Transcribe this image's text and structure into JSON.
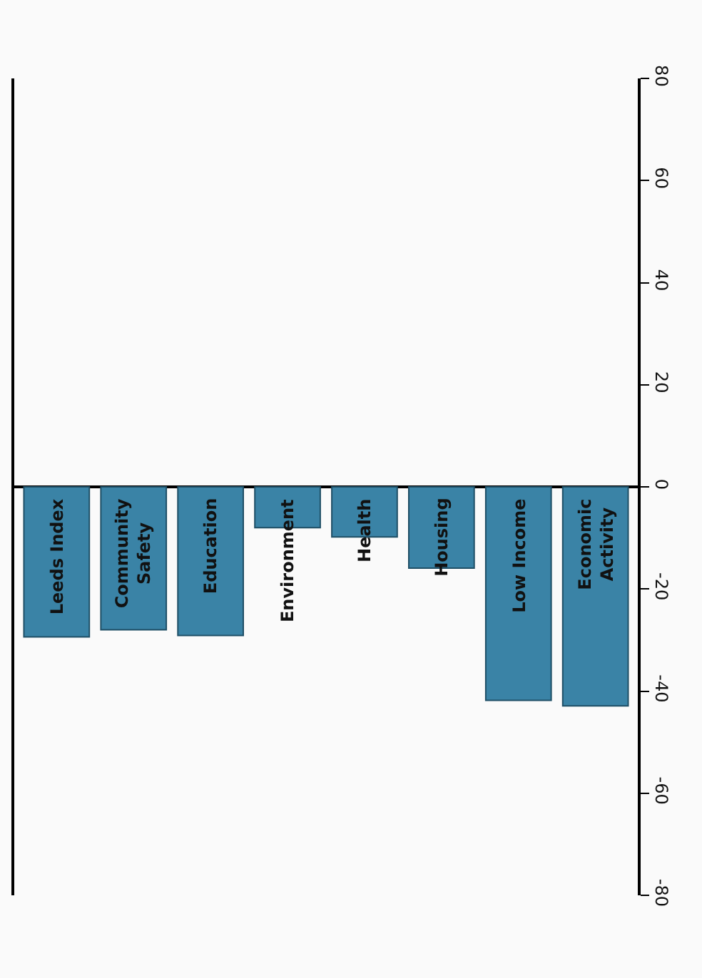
{
  "chart_data": {
    "type": "bar",
    "categories": [
      "Leeds Index",
      "Community Safety",
      "Education",
      "Environment",
      "Health",
      "Housing",
      "Low Income",
      "Economic Activity"
    ],
    "values": [
      -29.4,
      -28,
      -29.1,
      -8,
      -9.8,
      -15.9,
      -41.8,
      -42.9
    ],
    "color": "#3a83a6",
    "ylim": [
      -80,
      80
    ],
    "yticks": [
      -80,
      -60,
      -40,
      -20,
      0,
      20,
      40,
      60,
      80
    ]
  }
}
